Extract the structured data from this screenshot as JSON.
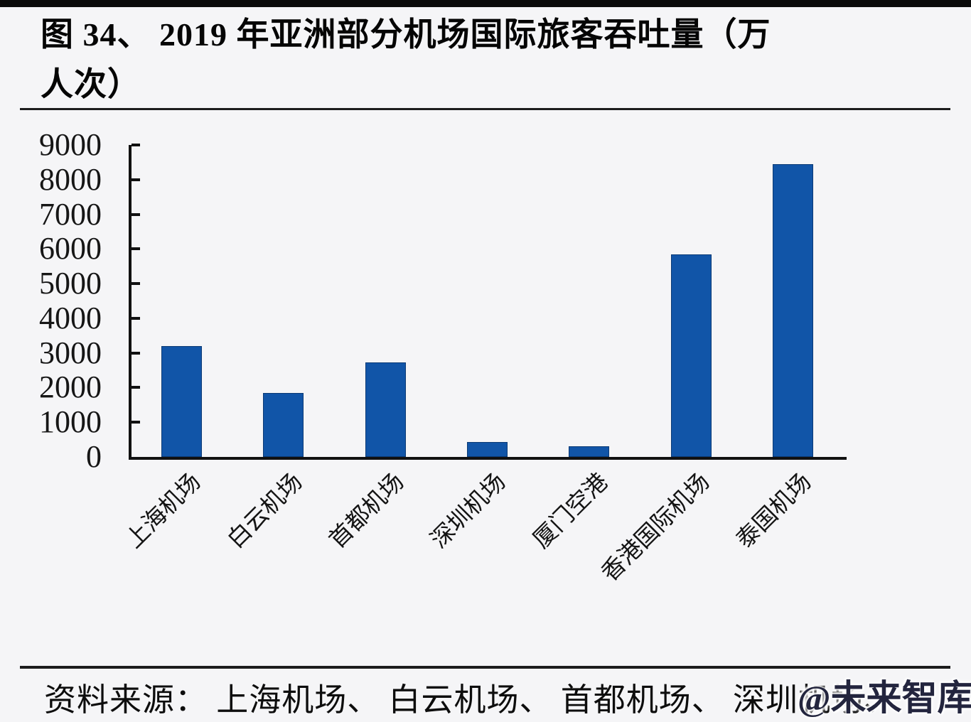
{
  "title": {
    "line1": "图 34、 2019 年亚洲部分机场国际旅客吞吐量（万",
    "line2": "人次）"
  },
  "chart_data": {
    "type": "bar",
    "title": "图 34、2019 年亚洲部分机场国际旅客吞吐量（万人次）",
    "categories": [
      "上海机场",
      "白云机场",
      "首都机场",
      "深圳机场",
      "厦门空港",
      "香港国际机场",
      "泰国机场"
    ],
    "values": [
      3190,
      1840,
      2720,
      430,
      310,
      5850,
      8440
    ],
    "xlabel": "",
    "ylabel": "",
    "ylim": [
      0,
      9000
    ],
    "yticks": [
      0,
      1000,
      2000,
      3000,
      4000,
      5000,
      6000,
      7000,
      8000,
      9000
    ],
    "x_tick_label_rotation_deg": -45,
    "grid": false,
    "legend": null,
    "bar_color": "#1155A8",
    "axis_color": "#111111"
  },
  "source": {
    "text": "资料来源： 上海机场、 白云机场、 首都机场、 深圳机场、"
  },
  "watermark": {
    "text": "@未来智库"
  }
}
